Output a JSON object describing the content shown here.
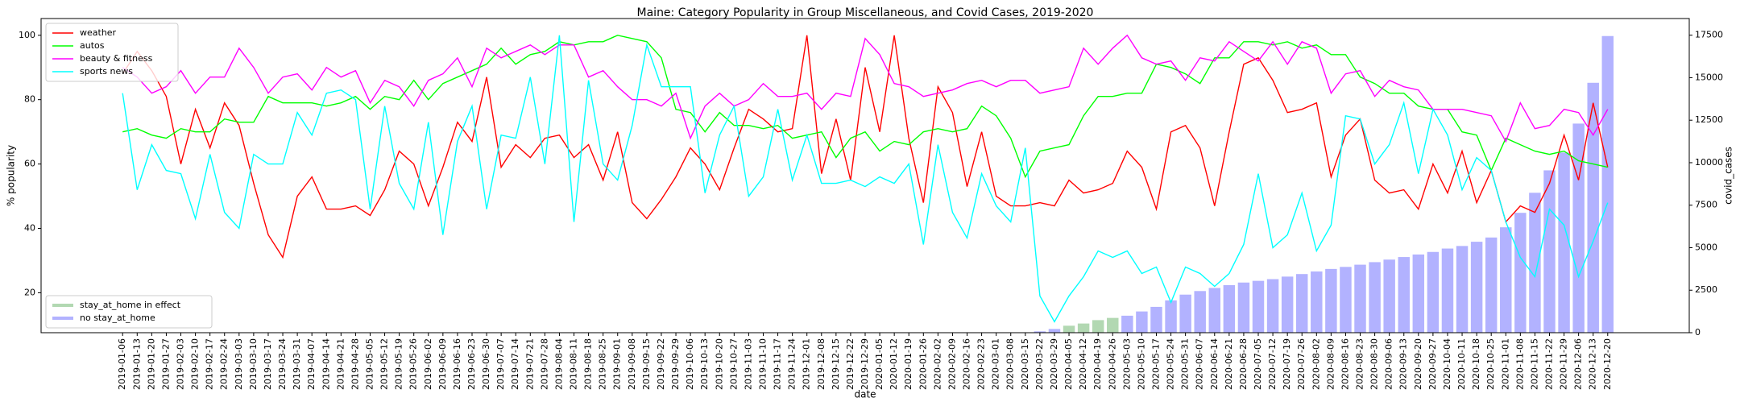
{
  "chart_data": {
    "type": "line",
    "title": "Maine: Category Popularity in Group Miscellaneous, and Covid Cases, 2019-2020",
    "x_label": "date",
    "y_label": "% popularity",
    "y2_label": "covid_cases",
    "categories": [
      "2019-01-06",
      "2019-01-13",
      "2019-01-20",
      "2019-01-27",
      "2019-02-03",
      "2019-02-10",
      "2019-02-17",
      "2019-02-24",
      "2019-03-03",
      "2019-03-10",
      "2019-03-17",
      "2019-03-24",
      "2019-03-31",
      "2019-04-07",
      "2019-04-14",
      "2019-04-21",
      "2019-04-28",
      "2019-05-05",
      "2019-05-12",
      "2019-05-19",
      "2019-05-26",
      "2019-06-02",
      "2019-06-09",
      "2019-06-16",
      "2019-06-23",
      "2019-06-30",
      "2019-07-07",
      "2019-07-14",
      "2019-07-21",
      "2019-07-28",
      "2019-08-04",
      "2019-08-11",
      "2019-08-18",
      "2019-08-25",
      "2019-09-01",
      "2019-09-08",
      "2019-09-15",
      "2019-09-22",
      "2019-09-29",
      "2019-10-06",
      "2019-10-13",
      "2019-10-20",
      "2019-10-27",
      "2019-11-03",
      "2019-11-10",
      "2019-11-17",
      "2019-11-24",
      "2019-12-01",
      "2019-12-08",
      "2019-12-15",
      "2019-12-22",
      "2019-12-29",
      "2020-01-05",
      "2020-01-12",
      "2020-01-19",
      "2020-01-26",
      "2020-02-02",
      "2020-02-09",
      "2020-02-16",
      "2020-02-23",
      "2020-03-01",
      "2020-03-08",
      "2020-03-15",
      "2020-03-22",
      "2020-03-29",
      "2020-04-05",
      "2020-04-12",
      "2020-04-19",
      "2020-04-26",
      "2020-05-03",
      "2020-05-10",
      "2020-05-17",
      "2020-05-24",
      "2020-05-31",
      "2020-06-07",
      "2020-06-14",
      "2020-06-21",
      "2020-06-28",
      "2020-07-05",
      "2020-07-12",
      "2020-07-19",
      "2020-07-26",
      "2020-08-02",
      "2020-08-09",
      "2020-08-16",
      "2020-08-23",
      "2020-08-30",
      "2020-09-06",
      "2020-09-13",
      "2020-09-20",
      "2020-09-27",
      "2020-10-04",
      "2020-10-11",
      "2020-10-18",
      "2020-10-25",
      "2020-11-01",
      "2020-11-08",
      "2020-11-15",
      "2020-11-22",
      "2020-11-29",
      "2020-12-06",
      "2020-12-13",
      "2020-12-20"
    ],
    "series": [
      {
        "name": "weather",
        "color": "#ff0000",
        "values": [
          88,
          95,
          89,
          81,
          60,
          77,
          65,
          79,
          72,
          54,
          38,
          31,
          50,
          56,
          46,
          46,
          47,
          44,
          52,
          64,
          60,
          47,
          59,
          73,
          67,
          87,
          59,
          66,
          62,
          68,
          69,
          62,
          66,
          55,
          70,
          48,
          43,
          49,
          56,
          65,
          60,
          52,
          65,
          77,
          74,
          70,
          71,
          100,
          57,
          74,
          55,
          90,
          70,
          100,
          68,
          48,
          84,
          76,
          53,
          70,
          50,
          47,
          47,
          48,
          47,
          55,
          51,
          52,
          54,
          64,
          59,
          46,
          70,
          72,
          65,
          47,
          70,
          91,
          93,
          86,
          76,
          77,
          79,
          56,
          69,
          74,
          55,
          51,
          52,
          46,
          60,
          51,
          64,
          48,
          58,
          42,
          47,
          45,
          54,
          69,
          55,
          79,
          59
        ]
      },
      {
        "name": "autos",
        "color": "#00ff00",
        "values": [
          70,
          71,
          69,
          68,
          71,
          70,
          70,
          74,
          73,
          73,
          81,
          79,
          79,
          79,
          78,
          79,
          81,
          77,
          81,
          80,
          86,
          80,
          85,
          87,
          89,
          91,
          96,
          91,
          94,
          95,
          98,
          97,
          98,
          98,
          100,
          99,
          98,
          93,
          77,
          76,
          70,
          76,
          72,
          72,
          71,
          72,
          68,
          69,
          70,
          62,
          68,
          70,
          64,
          67,
          66,
          70,
          71,
          70,
          71,
          78,
          75,
          68,
          56,
          64,
          65,
          66,
          75,
          81,
          81,
          82,
          82,
          91,
          90,
          88,
          85,
          93,
          93,
          98,
          98,
          97,
          98,
          96,
          97,
          94,
          94,
          87,
          85,
          82,
          82,
          78,
          77,
          77,
          70,
          69,
          58,
          68,
          66,
          64,
          63,
          64,
          61,
          60,
          59
        ]
      },
      {
        "name": "beauty & fitness",
        "color": "#ff00ff",
        "values": [
          90,
          87,
          82,
          84,
          89,
          82,
          87,
          87,
          96,
          90,
          82,
          87,
          88,
          83,
          90,
          87,
          89,
          79,
          86,
          84,
          78,
          86,
          88,
          93,
          84,
          96,
          93,
          95,
          97,
          94,
          97,
          97,
          87,
          89,
          84,
          80,
          80,
          78,
          82,
          68,
          78,
          82,
          78,
          80,
          85,
          81,
          81,
          82,
          77,
          82,
          81,
          99,
          94,
          85,
          84,
          81,
          82,
          83,
          85,
          86,
          84,
          86,
          86,
          82,
          83,
          84,
          96,
          91,
          96,
          100,
          93,
          91,
          92,
          86,
          93,
          92,
          98,
          95,
          92,
          98,
          91,
          98,
          96,
          82,
          88,
          89,
          81,
          86,
          84,
          83,
          77,
          77,
          77,
          76,
          75,
          67,
          79,
          71,
          72,
          77,
          76,
          69,
          77
        ]
      },
      {
        "name": "sports news",
        "color": "#00ffff",
        "values": [
          82,
          52,
          66,
          58,
          57,
          43,
          63,
          45,
          40,
          63,
          60,
          60,
          76,
          69,
          82,
          83,
          80,
          46,
          78,
          54,
          46,
          73,
          38,
          67,
          78,
          46,
          69,
          68,
          87,
          60,
          100,
          42,
          86,
          60,
          55,
          72,
          97,
          84,
          84,
          84,
          51,
          69,
          78,
          50,
          56,
          77,
          55,
          69,
          54,
          54,
          55,
          53,
          56,
          54,
          60,
          35,
          66,
          45,
          37,
          57,
          47,
          42,
          65,
          19,
          11,
          19,
          25,
          33,
          31,
          33,
          26,
          28,
          17,
          28,
          26,
          22,
          26,
          35,
          57,
          34,
          38,
          51,
          33,
          41,
          75,
          74,
          60,
          66,
          79,
          57,
          77,
          69,
          52,
          62,
          58,
          42,
          31,
          25,
          46,
          41,
          25,
          36,
          48
        ]
      },
      {
        "name": "stay_at_home in effect",
        "type": "bar",
        "axis": "y2",
        "color": "#b2d8b2",
        "values": [
          null,
          null,
          null,
          null,
          null,
          null,
          null,
          null,
          null,
          null,
          null,
          null,
          null,
          null,
          null,
          null,
          null,
          null,
          null,
          null,
          null,
          null,
          null,
          null,
          null,
          null,
          null,
          null,
          null,
          null,
          null,
          null,
          null,
          null,
          null,
          null,
          null,
          null,
          null,
          null,
          null,
          null,
          null,
          null,
          null,
          null,
          null,
          null,
          null,
          null,
          null,
          null,
          null,
          null,
          null,
          null,
          null,
          null,
          null,
          null,
          null,
          null,
          null,
          null,
          null,
          410,
          540,
          740,
          870,
          null,
          null,
          null,
          null,
          null,
          null,
          null,
          null,
          null,
          null,
          null,
          null,
          null,
          null,
          null,
          null,
          null,
          null,
          null,
          null,
          null,
          null,
          null,
          null,
          null,
          null,
          null,
          null,
          null,
          null,
          null,
          null,
          null,
          null
        ]
      },
      {
        "name": "no stay_at_home",
        "type": "bar",
        "axis": "y2",
        "color": "#b2b2ff",
        "values": [
          null,
          null,
          null,
          null,
          null,
          null,
          null,
          null,
          null,
          null,
          null,
          null,
          null,
          null,
          null,
          null,
          null,
          null,
          null,
          null,
          null,
          null,
          null,
          null,
          null,
          null,
          null,
          null,
          null,
          null,
          null,
          null,
          null,
          null,
          null,
          null,
          null,
          null,
          null,
          null,
          null,
          null,
          null,
          null,
          null,
          null,
          null,
          null,
          null,
          null,
          null,
          null,
          null,
          null,
          null,
          null,
          null,
          null,
          null,
          null,
          null,
          null,
          null,
          80,
          220,
          null,
          null,
          null,
          null,
          1000,
          1250,
          1520,
          1900,
          2240,
          2450,
          2630,
          2800,
          2950,
          3050,
          3150,
          3300,
          3450,
          3600,
          3750,
          3870,
          4000,
          4150,
          4300,
          4450,
          4600,
          4750,
          4950,
          5100,
          5350,
          5600,
          6200,
          7050,
          8230,
          9550,
          10600,
          12300,
          14700,
          17450
        ]
      }
    ],
    "ylim": [
      7.6,
      105.2
    ],
    "yticks": [
      20,
      40,
      60,
      80,
      100
    ],
    "y2lim": [
      0,
      18480
    ],
    "y2ticks": [
      0,
      2500,
      5000,
      7500,
      10000,
      12500,
      15000,
      17500
    ],
    "legend": "upper left",
    "bar_legend": "lower left",
    "grid": false
  }
}
